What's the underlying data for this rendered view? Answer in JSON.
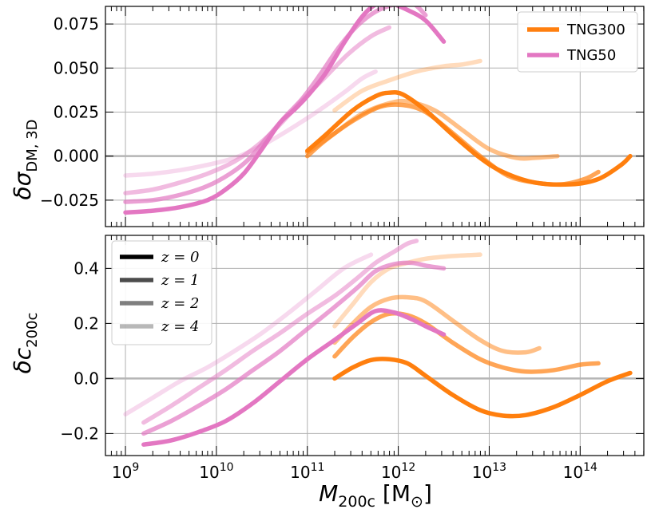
{
  "chart_data": [
    {
      "type": "line",
      "panel": "top",
      "ylabel_sym": "δσ",
      "ylabel_sub": "DM, 3D",
      "xscale": "log",
      "xlim_log10": [
        8.78,
        14.7
      ],
      "ylim": [
        -0.04,
        0.085
      ],
      "yticks": [
        -0.025,
        0.0,
        0.025,
        0.05,
        0.075
      ],
      "ytick_labels": [
        "−0.025",
        "0.000",
        "0.025",
        "0.050",
        "0.075"
      ],
      "grid": true,
      "zero_line": true,
      "legend": {
        "position": "top-right",
        "entries": [
          {
            "label": "TNG300",
            "color": "#ff7f0e"
          },
          {
            "label": "TNG50",
            "color": "#e377c2"
          }
        ]
      },
      "series": [
        {
          "name": "TNG300 z=0",
          "sim": "TNG300",
          "z": 0,
          "opacity": 1.0,
          "x": [
            11.0,
            11.2,
            11.5,
            11.75,
            11.9,
            12.05,
            12.3,
            12.6,
            12.9,
            13.15,
            13.5,
            13.9,
            14.2,
            14.45,
            14.55
          ],
          "y": [
            0.003,
            0.012,
            0.026,
            0.034,
            0.036,
            0.035,
            0.026,
            0.012,
            -0.001,
            -0.009,
            -0.015,
            -0.016,
            -0.013,
            -0.005,
            0.0
          ]
        },
        {
          "name": "TNG300 z=1",
          "sim": "TNG300",
          "z": 1,
          "opacity": 0.7,
          "x": [
            11.0,
            11.2,
            11.5,
            11.8,
            12.05,
            12.3,
            12.6,
            12.9,
            13.2,
            13.5,
            13.8,
            14.05,
            14.2
          ],
          "y": [
            0.0,
            0.009,
            0.02,
            0.028,
            0.029,
            0.025,
            0.013,
            0.0,
            -0.011,
            -0.015,
            -0.016,
            -0.013,
            -0.009
          ]
        },
        {
          "name": "TNG300 z=2",
          "sim": "TNG300",
          "z": 2,
          "opacity": 0.5,
          "x": [
            11.0,
            11.3,
            11.6,
            11.9,
            12.1,
            12.4,
            12.7,
            13.0,
            13.3,
            13.5,
            13.75
          ],
          "y": [
            0.002,
            0.013,
            0.024,
            0.03,
            0.031,
            0.026,
            0.015,
            0.004,
            -0.001,
            -0.001,
            0.0
          ]
        },
        {
          "name": "TNG300 z=4",
          "sim": "TNG300",
          "z": 4,
          "opacity": 0.28,
          "x": [
            11.3,
            11.6,
            11.9,
            12.2,
            12.5,
            12.7,
            12.9
          ],
          "y": [
            0.026,
            0.037,
            0.043,
            0.048,
            0.051,
            0.052,
            0.054
          ]
        },
        {
          "name": "TNG50 z=0",
          "sim": "TNG50",
          "z": 0,
          "opacity": 1.0,
          "x": [
            9.0,
            9.3,
            9.6,
            9.9,
            10.1,
            10.3,
            10.5,
            10.7,
            10.85,
            11.0,
            11.2,
            11.4,
            11.6,
            11.75,
            11.9,
            12.1,
            12.3,
            12.5
          ],
          "y": [
            -0.032,
            -0.031,
            -0.029,
            -0.025,
            -0.019,
            -0.01,
            0.004,
            0.019,
            0.026,
            0.034,
            0.047,
            0.064,
            0.079,
            0.086,
            0.087,
            0.083,
            0.077,
            0.065
          ]
        },
        {
          "name": "TNG50 z=1",
          "sim": "TNG50",
          "z": 1,
          "opacity": 0.7,
          "x": [
            9.0,
            9.3,
            9.6,
            9.9,
            10.15,
            10.35,
            10.55,
            10.75,
            10.95,
            11.15,
            11.35,
            11.55,
            11.75,
            11.95,
            12.15,
            12.3
          ],
          "y": [
            -0.026,
            -0.025,
            -0.022,
            -0.017,
            -0.01,
            -0.002,
            0.01,
            0.022,
            0.033,
            0.047,
            0.062,
            0.074,
            0.082,
            0.086,
            0.087,
            0.08
          ]
        },
        {
          "name": "TNG50 z=2",
          "sim": "TNG50",
          "z": 2,
          "opacity": 0.5,
          "x": [
            9.0,
            9.3,
            9.6,
            9.9,
            10.2,
            10.45,
            10.7,
            10.95,
            11.2,
            11.45,
            11.7,
            11.9
          ],
          "y": [
            -0.021,
            -0.019,
            -0.015,
            -0.01,
            -0.003,
            0.006,
            0.018,
            0.032,
            0.045,
            0.058,
            0.068,
            0.073
          ]
        },
        {
          "name": "TNG50 z=4",
          "sim": "TNG50",
          "z": 4,
          "opacity": 0.28,
          "x": [
            9.0,
            9.3,
            9.6,
            9.9,
            10.2,
            10.5,
            10.8,
            11.1,
            11.4,
            11.6,
            11.75
          ],
          "y": [
            -0.011,
            -0.01,
            -0.008,
            -0.005,
            -0.001,
            0.006,
            0.015,
            0.025,
            0.036,
            0.044,
            0.048
          ]
        }
      ]
    },
    {
      "type": "line",
      "panel": "bottom",
      "ylabel_sym": "δc",
      "ylabel_sub": "200c",
      "xscale": "log",
      "xlim_log10": [
        8.78,
        14.7
      ],
      "ylim": [
        -0.28,
        0.52
      ],
      "yticks": [
        -0.2,
        0.0,
        0.2,
        0.4
      ],
      "ytick_labels": [
        "−0.2",
        "0.0",
        "0.2",
        "0.4"
      ],
      "grid": true,
      "zero_line": true,
      "legend": {
        "position": "top-left",
        "entries": [
          {
            "label": "z = 0",
            "opacity": 1.0
          },
          {
            "label": "z = 1",
            "opacity": 0.7
          },
          {
            "label": "z = 2",
            "opacity": 0.5
          },
          {
            "label": "z = 4",
            "opacity": 0.28
          }
        ]
      },
      "series": [
        {
          "name": "TNG300 z=0",
          "sim": "TNG300",
          "z": 0,
          "opacity": 1.0,
          "x": [
            11.3,
            11.5,
            11.7,
            11.9,
            12.1,
            12.3,
            12.6,
            12.9,
            13.15,
            13.4,
            13.7,
            14.0,
            14.3,
            14.55
          ],
          "y": [
            0.0,
            0.04,
            0.067,
            0.07,
            0.055,
            0.01,
            -0.06,
            -0.115,
            -0.135,
            -0.133,
            -0.105,
            -0.06,
            -0.01,
            0.02
          ]
        },
        {
          "name": "TNG300 z=1",
          "sim": "TNG300",
          "z": 1,
          "opacity": 0.7,
          "x": [
            11.3,
            11.5,
            11.7,
            11.9,
            12.1,
            12.3,
            12.6,
            12.9,
            13.15,
            13.4,
            13.7,
            14.0,
            14.2
          ],
          "y": [
            0.08,
            0.15,
            0.205,
            0.235,
            0.23,
            0.2,
            0.13,
            0.07,
            0.04,
            0.025,
            0.03,
            0.05,
            0.055
          ]
        },
        {
          "name": "TNG300 z=2",
          "sim": "TNG300",
          "z": 2,
          "opacity": 0.5,
          "x": [
            11.3,
            11.5,
            11.7,
            11.9,
            12.1,
            12.3,
            12.6,
            12.9,
            13.15,
            13.4,
            13.55
          ],
          "y": [
            0.13,
            0.2,
            0.26,
            0.29,
            0.295,
            0.28,
            0.21,
            0.14,
            0.1,
            0.095,
            0.11
          ]
        },
        {
          "name": "TNG300 z=4",
          "sim": "TNG300",
          "z": 4,
          "opacity": 0.28,
          "x": [
            11.3,
            11.5,
            11.7,
            11.9,
            12.1,
            12.3,
            12.6,
            12.9
          ],
          "y": [
            0.19,
            0.27,
            0.35,
            0.4,
            0.42,
            0.435,
            0.445,
            0.45
          ]
        },
        {
          "name": "TNG50 z=0",
          "sim": "TNG50",
          "z": 0,
          "opacity": 1.0,
          "x": [
            9.2,
            9.5,
            9.8,
            10.1,
            10.4,
            10.7,
            11.0,
            11.3,
            11.55,
            11.75,
            11.95,
            12.15,
            12.3,
            12.5
          ],
          "y": [
            -0.24,
            -0.225,
            -0.195,
            -0.155,
            -0.09,
            -0.01,
            0.07,
            0.14,
            0.2,
            0.245,
            0.24,
            0.215,
            0.19,
            0.16
          ]
        },
        {
          "name": "TNG50 z=1",
          "sim": "TNG50",
          "z": 1,
          "opacity": 0.7,
          "x": [
            9.2,
            9.5,
            9.8,
            10.1,
            10.4,
            10.7,
            11.0,
            11.3,
            11.55,
            11.75,
            11.95,
            12.15,
            12.3,
            12.5
          ],
          "y": [
            -0.2,
            -0.155,
            -0.1,
            -0.04,
            0.03,
            0.1,
            0.18,
            0.26,
            0.33,
            0.39,
            0.415,
            0.42,
            0.41,
            0.4
          ]
        },
        {
          "name": "TNG50 z=2",
          "sim": "TNG50",
          "z": 2,
          "opacity": 0.5,
          "x": [
            9.2,
            9.5,
            9.8,
            10.1,
            10.4,
            10.7,
            11.0,
            11.3,
            11.55,
            11.75,
            11.95,
            12.1,
            12.2
          ],
          "y": [
            -0.16,
            -0.1,
            -0.035,
            0.03,
            0.1,
            0.165,
            0.235,
            0.3,
            0.365,
            0.42,
            0.46,
            0.49,
            0.5
          ]
        },
        {
          "name": "TNG50 z=4",
          "sim": "TNG50",
          "z": 4,
          "opacity": 0.28,
          "x": [
            9.0,
            9.3,
            9.6,
            9.9,
            10.2,
            10.5,
            10.8,
            11.1,
            11.4,
            11.7
          ],
          "y": [
            -0.13,
            -0.07,
            -0.01,
            0.04,
            0.1,
            0.165,
            0.24,
            0.32,
            0.4,
            0.45
          ]
        }
      ]
    }
  ],
  "x_axis": {
    "label_sym": "M",
    "label_sub": "200c",
    "label_unit": "[M",
    "label_unit_sub": "⊙",
    "label_close": "]",
    "tick_base": "10",
    "tick_exponents": [
      "9",
      "10",
      "11",
      "12",
      "13",
      "14"
    ]
  }
}
